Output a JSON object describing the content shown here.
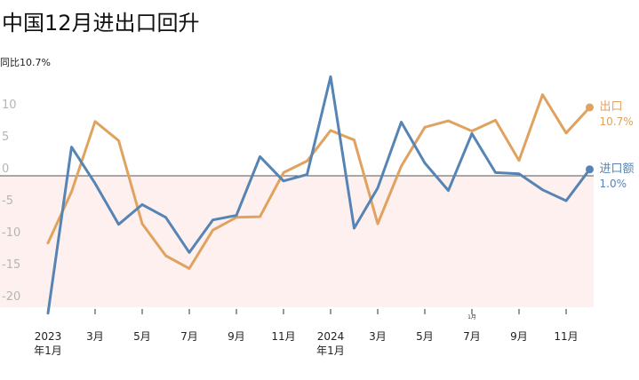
{
  "title": "中国12月进出口回升",
  "ylabel": "同比10.7%",
  "colors": {
    "export": "#e0a25f",
    "import": "#5684b4",
    "negative_zone": "#fdf0ee",
    "zero_line": "#555555",
    "ytick": "#b5b5b5"
  },
  "chart_data": {
    "type": "line",
    "x": [
      "2023年1月",
      "2023年2月",
      "2023年3月",
      "2023年4月",
      "2023年5月",
      "2023年6月",
      "2023年7月",
      "2023年8月",
      "2023年9月",
      "2023年10月",
      "2023年11月",
      "2023年12月",
      "2024年1月",
      "2024年2月",
      "2024年3月",
      "2024年4月",
      "2024年5月",
      "2024年6月",
      "2024年7月",
      "2024年8月",
      "2024年9月",
      "2024年10月",
      "2024年11月",
      "2024年12月"
    ],
    "series": [
      {
        "name": "出口",
        "color": "#e0a25f",
        "values": [
          -10.5,
          -2.5,
          8.5,
          5.5,
          -7.5,
          -12.5,
          -14.5,
          -8.5,
          -6.5,
          -6.4,
          0.5,
          2.3,
          7.1,
          5.6,
          -7.5,
          1.5,
          7.6,
          8.6,
          7.0,
          8.7,
          2.4,
          12.7,
          6.7,
          10.7
        ],
        "end_label": "10.7%"
      },
      {
        "name": "进口额",
        "color": "#5684b4",
        "values": [
          -21.5,
          4.5,
          -1.2,
          -7.6,
          -4.5,
          -6.5,
          -12.0,
          -6.9,
          -6.2,
          3.0,
          -0.8,
          0.2,
          15.5,
          -8.2,
          -1.9,
          8.4,
          2.0,
          -2.3,
          6.6,
          0.5,
          0.3,
          -2.2,
          -3.9,
          1.0
        ],
        "end_label": "1.0%"
      }
    ],
    "ylim": [
      -20,
      14
    ],
    "yticks": [
      "10",
      "5",
      "0",
      "-5",
      "-10",
      "-15",
      "-20"
    ],
    "xtick_labels": [
      {
        "line1": "2023",
        "line2": "年1月",
        "index": 0
      },
      {
        "line1": "3月",
        "line2": "",
        "index": 2
      },
      {
        "line1": "5月",
        "line2": "",
        "index": 4
      },
      {
        "line1": "7月",
        "line2": "",
        "index": 6
      },
      {
        "line1": "9月",
        "line2": "",
        "index": 8
      },
      {
        "line1": "11月",
        "line2": "",
        "index": 10
      },
      {
        "line1": "2024",
        "line2": "年1月",
        "index": 12
      },
      {
        "line1": "3月",
        "line2": "",
        "index": 14
      },
      {
        "line1": "5月",
        "line2": "",
        "index": 16
      },
      {
        "line1": "7月",
        "line2": "",
        "index": 18
      },
      {
        "line1": "9月",
        "line2": "",
        "index": 20
      },
      {
        "line1": "11月",
        "line2": "",
        "index": 22
      }
    ],
    "annotations": [
      {
        "text": "1月",
        "index": 18
      }
    ],
    "shaded_region": "below zero",
    "grid": false,
    "legend": "line-end labels at right"
  }
}
